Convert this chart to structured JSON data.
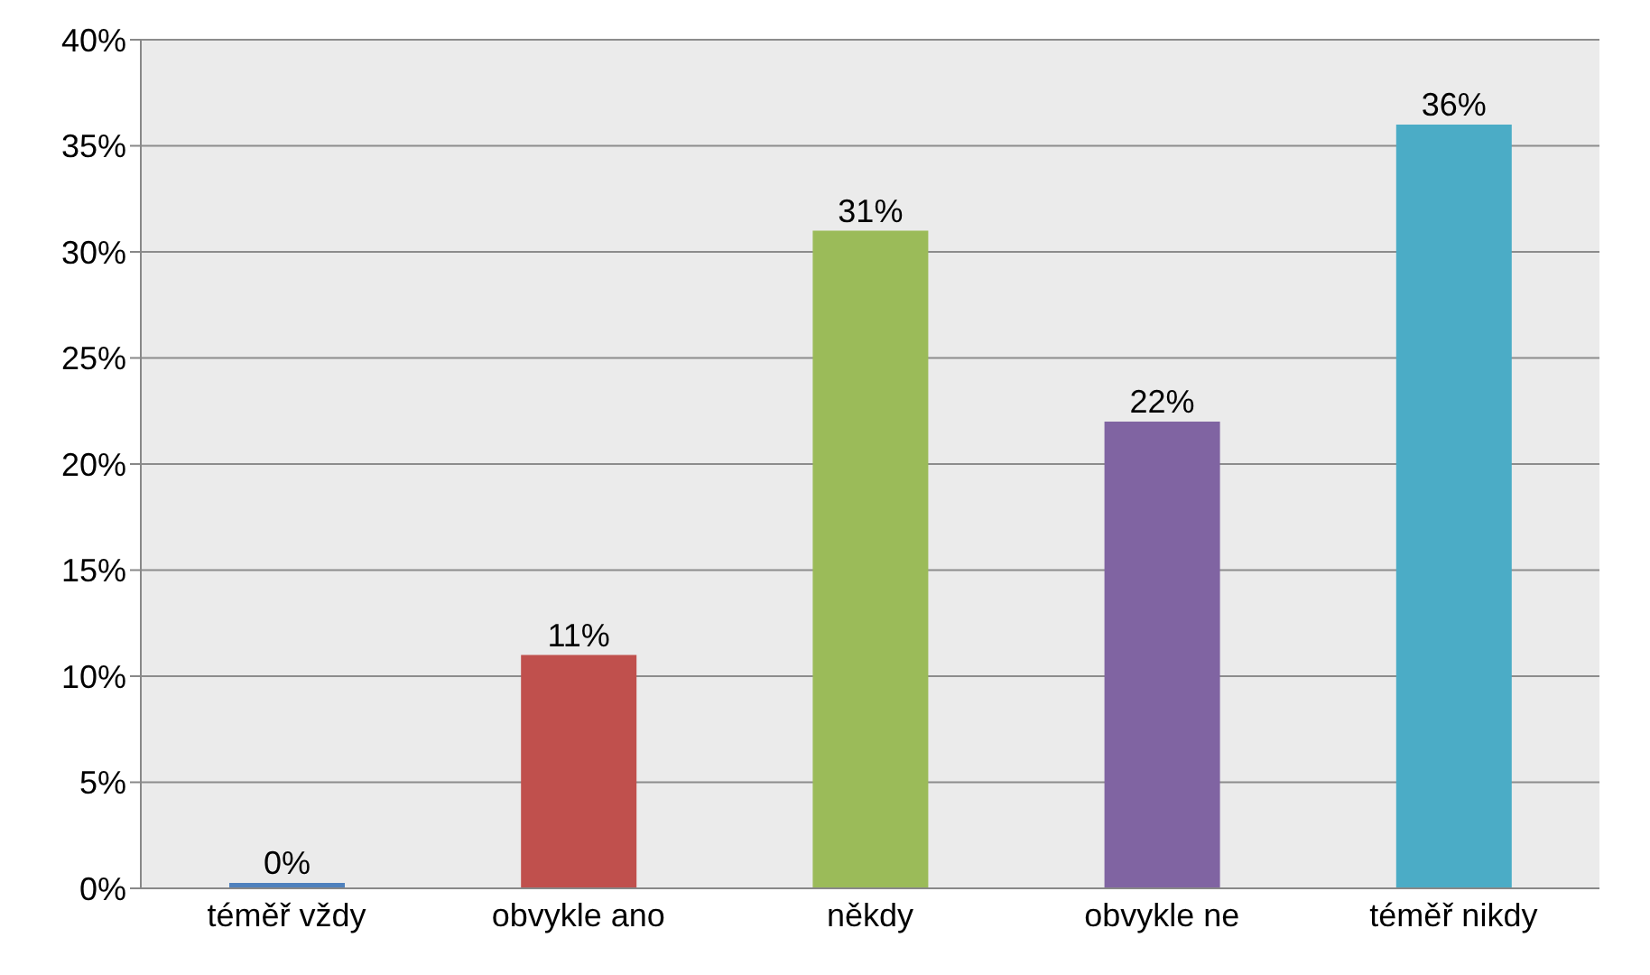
{
  "chart_data": {
    "type": "bar",
    "categories": [
      "téměř vždy",
      "obvykle ano",
      "někdy",
      "obvykle ne",
      "téměř nikdy"
    ],
    "values": [
      0,
      11,
      31,
      22,
      36
    ],
    "colors": [
      "#4f81bd",
      "#c0504d",
      "#9bbb59",
      "#8064a2",
      "#4bacc6"
    ],
    "value_labels": [
      "0%",
      "11%",
      "31%",
      "22%",
      "36%"
    ],
    "ylim": [
      0,
      40
    ],
    "yticks": [
      {
        "value": 0,
        "label": "0%"
      },
      {
        "value": 5,
        "label": "5%"
      },
      {
        "value": 10,
        "label": "10%"
      },
      {
        "value": 15,
        "label": "15%"
      },
      {
        "value": 20,
        "label": "20%"
      },
      {
        "value": 25,
        "label": "25%"
      },
      {
        "value": 30,
        "label": "30%"
      },
      {
        "value": 35,
        "label": "35%"
      },
      {
        "value": 40,
        "label": "40%"
      }
    ],
    "grid": "y",
    "legend": false
  }
}
